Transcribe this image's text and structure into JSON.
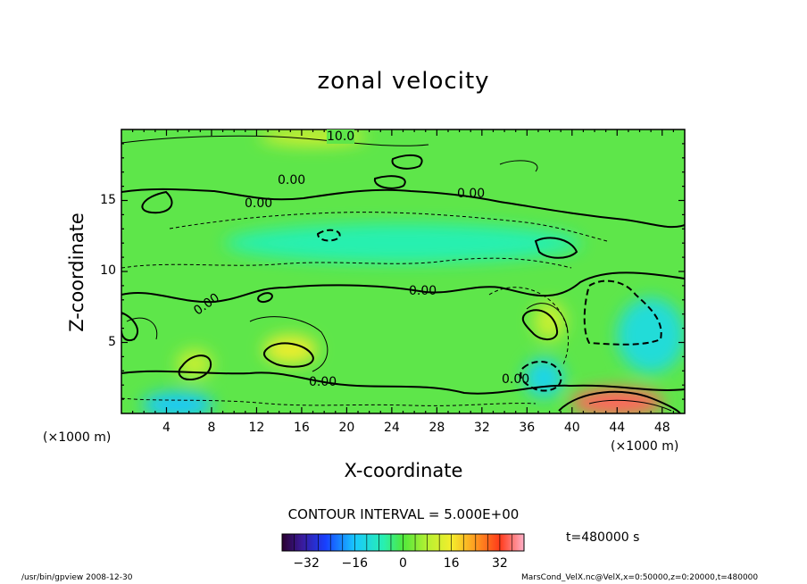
{
  "chart_data": {
    "type": "heatmap",
    "title": "zonal velocity",
    "xlabel": "X-coordinate",
    "ylabel": "Z-coordinate",
    "x_unit": "(×1000 m)",
    "xlim": [
      0,
      50
    ],
    "ylim": [
      0,
      20
    ],
    "x_ticks": [
      "4",
      "8",
      "12",
      "16",
      "20",
      "24",
      "28",
      "32",
      "36",
      "40",
      "44",
      "48"
    ],
    "y_ticks": [
      "5",
      "10",
      "15"
    ],
    "contour_labels": [
      "10.0",
      "0.00",
      "0.00",
      "0.00",
      "0.00",
      "0.00",
      "0.00",
      "0.00"
    ],
    "contour_interval_text": "CONTOUR INTERVAL = 5.000E+00",
    "colorbar": {
      "range": [
        -40,
        40
      ],
      "ticks": [
        "−32",
        "−16",
        "0",
        "16",
        "32"
      ]
    },
    "time_text": "t=480000 s",
    "features": [
      {
        "x": 15,
        "z": 4.5,
        "value": 15
      },
      {
        "x": 6.5,
        "z": 3.5,
        "value": 10
      },
      {
        "x": 38,
        "z": 6.5,
        "value": 10
      },
      {
        "x": 17,
        "z": 19.5,
        "value": 12
      },
      {
        "x": 44,
        "z": 0.8,
        "value": 35
      },
      {
        "x": 5,
        "z": 0.6,
        "value": -10
      },
      {
        "x": 47,
        "z": 5.5,
        "value": -7
      },
      {
        "x": 37.5,
        "z": 2.5,
        "value": -8
      },
      {
        "x": 25,
        "z": 12,
        "value": -4
      }
    ]
  },
  "footer": {
    "left": "/usr/bin/gpview  2008-12-30",
    "right": "MarsCond_VelX.nc@VelX,x=0:50000,z=0:20000,t=480000"
  }
}
